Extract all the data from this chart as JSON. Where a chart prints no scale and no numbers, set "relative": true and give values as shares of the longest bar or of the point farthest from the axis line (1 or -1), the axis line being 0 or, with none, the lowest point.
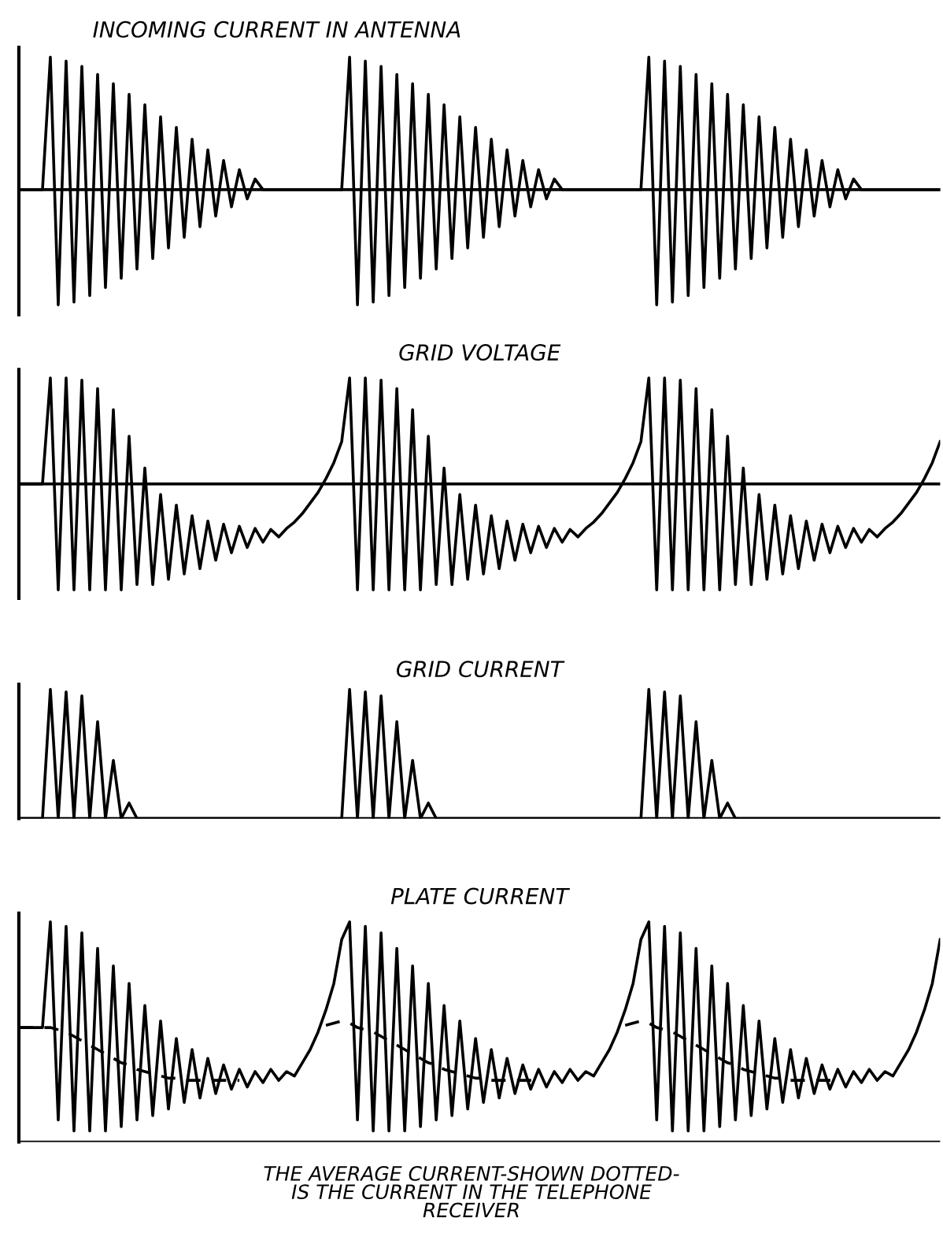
{
  "chart_data": [
    {
      "type": "line",
      "title": "INCOMING CURRENT IN ANTENNA",
      "relative": true,
      "tick_labels": false,
      "categories": [
        null,
        null,
        null,
        null,
        null,
        null,
        null,
        null,
        null,
        null,
        null,
        null,
        null,
        null,
        null,
        null,
        null,
        null,
        null,
        null,
        null,
        null,
        null,
        null,
        null,
        null,
        null,
        null,
        null,
        null,
        null,
        null,
        null,
        null,
        null,
        null,
        null,
        null,
        null,
        null,
        null,
        null,
        null,
        null,
        null,
        null,
        null,
        null,
        null,
        null,
        null,
        null,
        null,
        null,
        null,
        null,
        null,
        null,
        null,
        null,
        null,
        null,
        null,
        null,
        null,
        null,
        null,
        null,
        null,
        null,
        null,
        null,
        null,
        null,
        null,
        null,
        null,
        null,
        null,
        null,
        null,
        null,
        null,
        null,
        null,
        null,
        null,
        null,
        null,
        null,
        null,
        null,
        null,
        null,
        null,
        null,
        null,
        null,
        null,
        null,
        null,
        null,
        null,
        null,
        null,
        null,
        null,
        null,
        null,
        null,
        null,
        null,
        null,
        null,
        null,
        null,
        null,
        null
      ],
      "series": [
        {
          "color": "#000000",
          "line_style": "solid",
          "values": [
            0,
            0,
            0,
            0,
            1,
            -0.87,
            0.97,
            -0.85,
            0.93,
            -0.8,
            0.87,
            -0.74,
            0.8,
            -0.67,
            0.72,
            -0.6,
            0.64,
            -0.52,
            0.55,
            -0.44,
            0.47,
            -0.36,
            0.38,
            -0.28,
            0.3,
            -0.2,
            0.22,
            -0.13,
            0.15,
            -0.07,
            0.08,
            0,
            0,
            0,
            0,
            0,
            0,
            0,
            0,
            0,
            0,
            0,
            1,
            -0.87,
            0.97,
            -0.85,
            0.93,
            -0.8,
            0.87,
            -0.74,
            0.8,
            -0.67,
            0.72,
            -0.6,
            0.64,
            -0.52,
            0.55,
            -0.44,
            0.47,
            -0.36,
            0.38,
            -0.28,
            0.3,
            -0.2,
            0.22,
            -0.13,
            0.15,
            -0.07,
            0.08,
            0,
            0,
            0,
            0,
            0,
            0,
            0,
            0,
            0,
            0,
            0,
            1,
            -0.87,
            0.97,
            -0.85,
            0.93,
            -0.8,
            0.87,
            -0.74,
            0.8,
            -0.67,
            0.72,
            -0.6,
            0.64,
            -0.52,
            0.55,
            -0.44,
            0.47,
            -0.36,
            0.38,
            -0.28,
            0.3,
            -0.2,
            0.22,
            -0.13,
            0.15,
            -0.07,
            0.08,
            0,
            0,
            0,
            0,
            0,
            0,
            0,
            0,
            0,
            0,
            0
          ]
        }
      ]
    },
    {
      "type": "line",
      "title": "GRID VOLTAGE",
      "relative": true,
      "tick_labels": false,
      "categories": [
        null,
        null,
        null,
        null,
        null,
        null,
        null,
        null,
        null,
        null,
        null,
        null,
        null,
        null,
        null,
        null,
        null,
        null,
        null,
        null,
        null,
        null,
        null,
        null,
        null,
        null,
        null,
        null,
        null,
        null,
        null,
        null,
        null,
        null,
        null,
        null,
        null,
        null,
        null,
        null,
        null,
        null,
        null,
        null,
        null,
        null,
        null,
        null,
        null,
        null,
        null,
        null,
        null,
        null,
        null,
        null,
        null,
        null,
        null,
        null,
        null,
        null,
        null,
        null,
        null,
        null,
        null,
        null,
        null,
        null,
        null,
        null,
        null,
        null,
        null,
        null,
        null,
        null,
        null,
        null,
        null,
        null,
        null,
        null,
        null,
        null,
        null,
        null,
        null,
        null,
        null,
        null,
        null,
        null,
        null,
        null,
        null,
        null,
        null,
        null,
        null,
        null,
        null,
        null,
        null,
        null,
        null,
        null,
        null,
        null,
        null,
        null,
        null,
        null,
        null,
        null,
        null,
        null
      ],
      "series": [
        {
          "color": "#000000",
          "line_style": "solid",
          "values": [
            0,
            0,
            0,
            0,
            1,
            -1,
            1,
            -1,
            0.98,
            -1,
            0.9,
            -1,
            0.7,
            -1,
            0.45,
            -0.95,
            0.15,
            -0.95,
            -0.1,
            -0.9,
            -0.2,
            -0.85,
            -0.3,
            -0.8,
            -0.35,
            -0.72,
            -0.38,
            -0.65,
            -0.4,
            -0.6,
            -0.42,
            -0.55,
            -0.43,
            -0.5,
            -0.42,
            -0.36,
            -0.28,
            -0.18,
            -0.08,
            0.05,
            0.2,
            0.4,
            1,
            -1,
            1,
            -1,
            0.98,
            -1,
            0.9,
            -1,
            0.7,
            -1,
            0.45,
            -0.95,
            0.15,
            -0.95,
            -0.1,
            -0.9,
            -0.2,
            -0.85,
            -0.3,
            -0.8,
            -0.35,
            -0.72,
            -0.38,
            -0.65,
            -0.4,
            -0.6,
            -0.42,
            -0.55,
            -0.43,
            -0.5,
            -0.42,
            -0.36,
            -0.28,
            -0.18,
            -0.08,
            0.05,
            0.2,
            0.4,
            1,
            -1,
            1,
            -1,
            0.98,
            -1,
            0.9,
            -1,
            0.7,
            -1,
            0.45,
            -0.95,
            0.15,
            -0.95,
            -0.1,
            -0.9,
            -0.2,
            -0.85,
            -0.3,
            -0.8,
            -0.35,
            -0.72,
            -0.38,
            -0.65,
            -0.4,
            -0.6,
            -0.42,
            -0.55,
            -0.43,
            -0.5,
            -0.42,
            -0.36,
            -0.28,
            -0.18,
            -0.08,
            0.05,
            0.2,
            0.4
          ]
        }
      ]
    },
    {
      "type": "line",
      "title": "GRID CURRENT",
      "relative": true,
      "tick_labels": false,
      "categories": [
        null,
        null,
        null,
        null,
        null,
        null,
        null,
        null,
        null,
        null,
        null,
        null,
        null,
        null,
        null,
        null,
        null,
        null,
        null,
        null,
        null,
        null,
        null,
        null,
        null,
        null,
        null,
        null,
        null,
        null,
        null,
        null,
        null,
        null,
        null,
        null,
        null,
        null,
        null,
        null,
        null,
        null,
        null,
        null,
        null,
        null,
        null,
        null,
        null,
        null,
        null,
        null,
        null,
        null,
        null,
        null,
        null,
        null,
        null,
        null,
        null,
        null,
        null,
        null,
        null,
        null,
        null,
        null,
        null,
        null,
        null,
        null,
        null,
        null,
        null,
        null,
        null,
        null,
        null,
        null,
        null,
        null,
        null,
        null,
        null,
        null,
        null,
        null,
        null,
        null,
        null,
        null,
        null,
        null,
        null,
        null,
        null,
        null,
        null,
        null,
        null,
        null,
        null,
        null,
        null,
        null,
        null,
        null,
        null,
        null,
        null,
        null,
        null,
        null,
        null,
        null,
        null,
        null
      ],
      "series": [
        {
          "color": "#000000",
          "line_style": "solid",
          "values": [
            0,
            0,
            0,
            0,
            1,
            0,
            0.98,
            0,
            0.95,
            0,
            0.75,
            0,
            0.45,
            0,
            0.12,
            0,
            0,
            0,
            0,
            0,
            0,
            0,
            0,
            0,
            0,
            0,
            0,
            0,
            0,
            0,
            0,
            0,
            0,
            0,
            0,
            0,
            0,
            0,
            0,
            0,
            0,
            0,
            1,
            0,
            0.98,
            0,
            0.95,
            0,
            0.75,
            0,
            0.45,
            0,
            0.12,
            0,
            0,
            0,
            0,
            0,
            0,
            0,
            0,
            0,
            0,
            0,
            0,
            0,
            0,
            0,
            0,
            0,
            0,
            0,
            0,
            0,
            0,
            0,
            0,
            0,
            0,
            0,
            1,
            0,
            0.98,
            0,
            0.95,
            0,
            0.75,
            0,
            0.45,
            0,
            0.12,
            0,
            0,
            0,
            0,
            0,
            0,
            0,
            0,
            0,
            0,
            0,
            0,
            0,
            0,
            0,
            0,
            0,
            0,
            0,
            0,
            0,
            0,
            0,
            0,
            0,
            0,
            0
          ]
        }
      ]
    },
    {
      "type": "line",
      "title": "PLATE CURRENT",
      "relative": true,
      "tick_labels": false,
      "annotations": [
        "THE AVERAGE CURRENT-SHOWN DOTTED-\nIS THE CURRENT IN THE TELEPHONE\nRECEIVER"
      ],
      "categories": [
        null,
        null,
        null,
        null,
        null,
        null,
        null,
        null,
        null,
        null,
        null,
        null,
        null,
        null,
        null,
        null,
        null,
        null,
        null,
        null,
        null,
        null,
        null,
        null,
        null,
        null,
        null,
        null,
        null,
        null,
        null,
        null,
        null,
        null,
        null,
        null,
        null,
        null,
        null,
        null,
        null,
        null,
        null,
        null,
        null,
        null,
        null,
        null,
        null,
        null,
        null,
        null,
        null,
        null,
        null,
        null,
        null,
        null,
        null,
        null,
        null,
        null,
        null,
        null,
        null,
        null,
        null,
        null,
        null,
        null,
        null,
        null,
        null,
        null,
        null,
        null,
        null,
        null,
        null,
        null,
        null,
        null,
        null,
        null,
        null,
        null,
        null,
        null,
        null,
        null,
        null,
        null,
        null,
        null,
        null,
        null,
        null,
        null,
        null,
        null,
        null,
        null,
        null,
        null,
        null,
        null,
        null,
        null,
        null,
        null,
        null,
        null,
        null,
        null,
        null,
        null,
        null,
        null
      ],
      "series": [
        {
          "color": "#000000",
          "line_style": "solid",
          "values": [
            0.52,
            0.52,
            0.52,
            0.52,
            1,
            0.1,
            0.98,
            0.05,
            0.95,
            0.05,
            0.88,
            0.05,
            0.8,
            0.07,
            0.72,
            0.1,
            0.62,
            0.12,
            0.55,
            0.15,
            0.47,
            0.18,
            0.42,
            0.2,
            0.38,
            0.22,
            0.35,
            0.24,
            0.33,
            0.25,
            0.32,
            0.27,
            0.33,
            0.28,
            0.32,
            0.3,
            0.36,
            0.42,
            0.5,
            0.6,
            0.72,
            0.92,
            1,
            0.1,
            0.98,
            0.05,
            0.95,
            0.05,
            0.88,
            0.05,
            0.8,
            0.07,
            0.72,
            0.1,
            0.62,
            0.12,
            0.55,
            0.15,
            0.47,
            0.18,
            0.42,
            0.2,
            0.38,
            0.22,
            0.35,
            0.24,
            0.33,
            0.25,
            0.32,
            0.27,
            0.33,
            0.28,
            0.32,
            0.3,
            0.36,
            0.42,
            0.5,
            0.6,
            0.72,
            0.92,
            1,
            0.1,
            0.98,
            0.05,
            0.95,
            0.05,
            0.88,
            0.05,
            0.8,
            0.07,
            0.72,
            0.1,
            0.62,
            0.12,
            0.55,
            0.15,
            0.47,
            0.18,
            0.42,
            0.2,
            0.38,
            0.22,
            0.35,
            0.24,
            0.33,
            0.25,
            0.32,
            0.27,
            0.33,
            0.28,
            0.32,
            0.3,
            0.36,
            0.42,
            0.5,
            0.6,
            0.72,
            0.92
          ]
        },
        {
          "color": "#000000",
          "line_style": "dashed",
          "values": [
            0.52,
            0.52,
            0.52,
            0.52,
            0.52,
            0.51,
            0.5,
            0.48,
            0.46,
            0.44,
            0.42,
            0.4,
            0.38,
            0.36,
            0.35,
            0.33,
            0.32,
            0.31,
            0.3,
            0.29,
            0.29,
            0.28,
            0.28,
            0.28,
            0.28,
            0.28,
            0.28,
            0.28,
            0.28,
            null,
            null,
            null,
            null,
            null,
            null,
            null,
            null,
            null,
            null,
            0.53,
            0.54,
            0.55,
            0.54,
            0.52,
            0.51,
            0.5,
            0.48,
            0.46,
            0.44,
            0.42,
            0.4,
            0.38,
            0.36,
            0.35,
            0.33,
            0.32,
            0.31,
            0.3,
            0.29,
            0.29,
            0.28,
            0.28,
            0.28,
            0.28,
            0.28,
            0.28,
            0.28,
            null,
            null,
            null,
            null,
            null,
            null,
            null,
            null,
            null,
            null,
            0.53,
            0.54,
            0.55,
            0.54,
            0.52,
            0.51,
            0.5,
            0.48,
            0.46,
            0.44,
            0.42,
            0.4,
            0.38,
            0.36,
            0.35,
            0.33,
            0.32,
            0.31,
            0.3,
            0.29,
            0.29,
            0.28,
            0.28,
            0.28,
            0.28,
            0.28,
            0.28,
            0.28,
            null,
            null,
            null,
            null,
            null,
            null,
            null,
            null,
            null,
            null,
            null,
            null,
            null
          ]
        }
      ]
    }
  ]
}
